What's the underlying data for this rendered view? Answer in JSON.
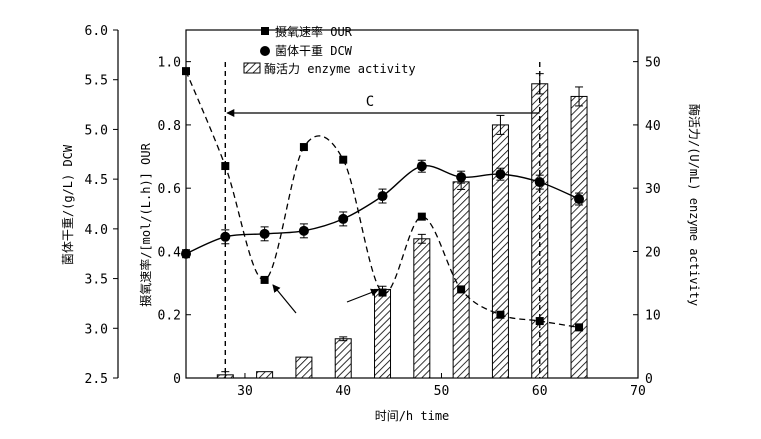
{
  "chart_data": {
    "type": "bar",
    "xlabel": "时间/h time",
    "xlim": [
      24,
      70
    ],
    "x_ticks": [
      "30",
      "40",
      "50",
      "60",
      "70"
    ],
    "left_outer_axis": {
      "label": "菌体干重/(g/L) DCW",
      "range": [
        2.5,
        6.0
      ],
      "ticks": [
        "2.5",
        "3.0",
        "3.5",
        "4.0",
        "4.5",
        "5.0",
        "5.5",
        "6.0"
      ]
    },
    "left_inner_axis": {
      "label": "摄氧速率/[mol/(L.h)] OUR",
      "range": [
        0,
        1.1
      ],
      "ticks": [
        "0",
        "0.2",
        "0.4",
        "0.6",
        "0.8",
        "1.0"
      ]
    },
    "right_axis": {
      "label": "酶活力/(U/mL) enzyme activity",
      "range": [
        0,
        55
      ],
      "ticks": [
        "0",
        "10",
        "20",
        "30",
        "40",
        "50"
      ]
    },
    "legend": [
      "摄氧速率 OUR",
      "菌体干重 DCW",
      "酶活力 enzyme activity"
    ],
    "legend_position": "top-left",
    "annotation": "C",
    "vertical_markers_x": [
      28,
      60
    ],
    "annotation_arrow_x": [
      28,
      60
    ],
    "series": [
      {
        "name": "摄氧速率 OUR",
        "marker": "square",
        "axis": "left_inner",
        "x": [
          24,
          28,
          32,
          36,
          40,
          44,
          48,
          52,
          56,
          60,
          64
        ],
        "y": [
          0.97,
          0.67,
          0.31,
          0.73,
          0.69,
          0.27,
          0.51,
          0.28,
          0.2,
          0.18,
          0.16
        ]
      },
      {
        "name": "菌体干重 DCW",
        "marker": "circle",
        "axis": "left_outer",
        "x": [
          24,
          28,
          32,
          36,
          40,
          44,
          48,
          52,
          56,
          60,
          64
        ],
        "y": [
          3.75,
          3.92,
          3.95,
          3.98,
          4.1,
          4.33,
          4.63,
          4.52,
          4.55,
          4.47,
          4.3
        ],
        "error": [
          0.04,
          0.07,
          0.07,
          0.07,
          0.07,
          0.07,
          0.06,
          0.06,
          0.06,
          0.07,
          0.06
        ]
      },
      {
        "name": "酶活力 enzyme activity",
        "marker": "hatched-bar",
        "axis": "right",
        "x": [
          28,
          32,
          36,
          40,
          44,
          48,
          52,
          56,
          60,
          64
        ],
        "y": [
          0.5,
          1.0,
          3.3,
          6.2,
          14,
          22,
          31,
          40,
          46.5,
          44.5
        ],
        "error": [
          0.5,
          0.2,
          0.2,
          0.3,
          0.5,
          0.7,
          1.2,
          1.5,
          1.6,
          1.5
        ]
      }
    ]
  }
}
